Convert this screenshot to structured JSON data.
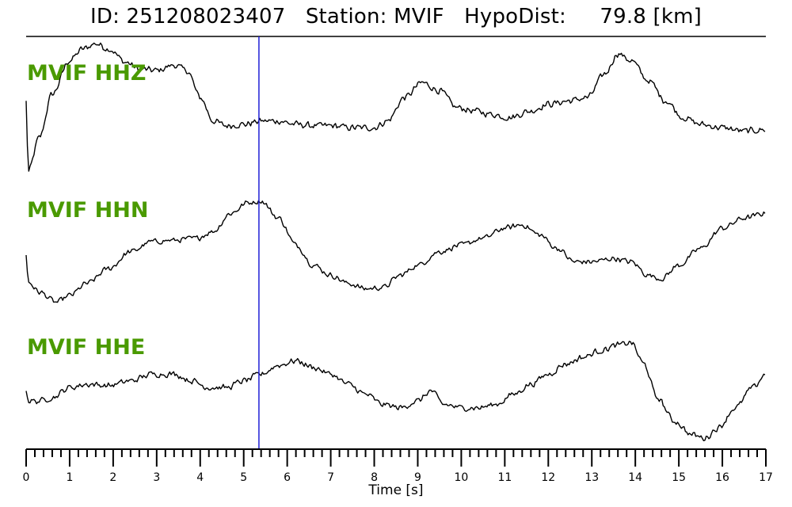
{
  "header": {
    "title": "ID: 251208023407   Station: MVIF   HypoDist:     79.8 [km]"
  },
  "colors": {
    "trace": "#000000",
    "label": "#4a9a00",
    "pick_line": "#1f1fd6",
    "axis": "#000000"
  },
  "chart_data": {
    "type": "line",
    "title": "ID: 251208023407   Station: MVIF   HypoDist:     79.8 [km]",
    "xlabel": "Time [s]",
    "ylabel": "",
    "xlim": [
      0,
      17
    ],
    "x_ticks": [
      "0",
      "1",
      "2",
      "3",
      "4",
      "5",
      "6",
      "7",
      "8",
      "9",
      "10",
      "11",
      "12",
      "13",
      "14",
      "15",
      "16",
      "17"
    ],
    "minor_tick_step": 0.2,
    "pick_time": 5.35,
    "y_axis_shown": false,
    "grid": false,
    "series": [
      {
        "name": "MVIF HHZ",
        "noise": 0.06,
        "points": [
          [
            0.0,
            0.15
          ],
          [
            0.05,
            -0.9
          ],
          [
            0.3,
            -0.4
          ],
          [
            0.6,
            0.25
          ],
          [
            1.0,
            0.75
          ],
          [
            1.3,
            0.92
          ],
          [
            1.6,
            1.0
          ],
          [
            1.9,
            0.92
          ],
          [
            2.3,
            0.72
          ],
          [
            2.6,
            0.62
          ],
          [
            3.0,
            0.6
          ],
          [
            3.4,
            0.68
          ],
          [
            3.7,
            0.6
          ],
          [
            4.0,
            0.2
          ],
          [
            4.3,
            -0.15
          ],
          [
            4.6,
            -0.22
          ],
          [
            5.0,
            -0.2
          ],
          [
            5.4,
            -0.15
          ],
          [
            5.8,
            -0.15
          ],
          [
            6.2,
            -0.2
          ],
          [
            6.6,
            -0.22
          ],
          [
            7.0,
            -0.22
          ],
          [
            7.5,
            -0.25
          ],
          [
            8.0,
            -0.25
          ],
          [
            8.3,
            -0.15
          ],
          [
            8.7,
            0.2
          ],
          [
            9.1,
            0.42
          ],
          [
            9.5,
            0.3
          ],
          [
            9.9,
            0.05
          ],
          [
            10.3,
            0.0
          ],
          [
            10.7,
            -0.05
          ],
          [
            11.1,
            -0.1
          ],
          [
            11.6,
            0.0
          ],
          [
            12.0,
            0.1
          ],
          [
            12.5,
            0.15
          ],
          [
            12.9,
            0.2
          ],
          [
            13.3,
            0.55
          ],
          [
            13.6,
            0.85
          ],
          [
            13.9,
            0.75
          ],
          [
            14.3,
            0.45
          ],
          [
            14.7,
            0.15
          ],
          [
            15.1,
            -0.1
          ],
          [
            15.5,
            -0.2
          ],
          [
            16.0,
            -0.25
          ],
          [
            16.5,
            -0.3
          ],
          [
            17.0,
            -0.28
          ]
        ]
      },
      {
        "name": "MVIF HHN",
        "noise": 0.05,
        "points": [
          [
            0.0,
            -0.2
          ],
          [
            0.05,
            -0.6
          ],
          [
            0.3,
            -0.75
          ],
          [
            0.7,
            -0.9
          ],
          [
            1.0,
            -0.8
          ],
          [
            1.4,
            -0.62
          ],
          [
            1.9,
            -0.4
          ],
          [
            2.4,
            -0.15
          ],
          [
            2.9,
            0.0
          ],
          [
            3.4,
            0.02
          ],
          [
            3.9,
            0.05
          ],
          [
            4.3,
            0.15
          ],
          [
            4.7,
            0.42
          ],
          [
            5.1,
            0.58
          ],
          [
            5.4,
            0.6
          ],
          [
            5.8,
            0.35
          ],
          [
            6.2,
            -0.05
          ],
          [
            6.6,
            -0.35
          ],
          [
            7.0,
            -0.5
          ],
          [
            7.4,
            -0.62
          ],
          [
            7.8,
            -0.7
          ],
          [
            8.2,
            -0.68
          ],
          [
            8.6,
            -0.5
          ],
          [
            9.0,
            -0.35
          ],
          [
            9.5,
            -0.15
          ],
          [
            10.0,
            -0.05
          ],
          [
            10.5,
            0.05
          ],
          [
            11.0,
            0.2
          ],
          [
            11.4,
            0.25
          ],
          [
            11.8,
            0.1
          ],
          [
            12.2,
            -0.1
          ],
          [
            12.6,
            -0.3
          ],
          [
            13.0,
            -0.3
          ],
          [
            13.5,
            -0.25
          ],
          [
            13.9,
            -0.3
          ],
          [
            14.3,
            -0.5
          ],
          [
            14.6,
            -0.55
          ],
          [
            15.0,
            -0.35
          ],
          [
            15.5,
            -0.1
          ],
          [
            16.0,
            0.2
          ],
          [
            16.5,
            0.35
          ],
          [
            17.0,
            0.42
          ]
        ]
      },
      {
        "name": "MVIF HHE",
        "noise": 0.055,
        "points": [
          [
            0.0,
            -0.1
          ],
          [
            0.05,
            -0.25
          ],
          [
            0.3,
            -0.25
          ],
          [
            0.6,
            -0.2
          ],
          [
            1.0,
            -0.05
          ],
          [
            1.4,
            0.0
          ],
          [
            1.9,
            -0.02
          ],
          [
            2.4,
            0.05
          ],
          [
            2.9,
            0.15
          ],
          [
            3.4,
            0.15
          ],
          [
            3.8,
            0.05
          ],
          [
            4.2,
            -0.05
          ],
          [
            4.6,
            -0.05
          ],
          [
            5.0,
            0.05
          ],
          [
            5.4,
            0.15
          ],
          [
            5.8,
            0.28
          ],
          [
            6.2,
            0.35
          ],
          [
            6.6,
            0.25
          ],
          [
            7.0,
            0.15
          ],
          [
            7.4,
            0.0
          ],
          [
            7.8,
            -0.15
          ],
          [
            8.2,
            -0.3
          ],
          [
            8.6,
            -0.35
          ],
          [
            9.0,
            -0.25
          ],
          [
            9.3,
            -0.1
          ],
          [
            9.6,
            -0.3
          ],
          [
            10.0,
            -0.35
          ],
          [
            10.4,
            -0.35
          ],
          [
            10.8,
            -0.3
          ],
          [
            11.2,
            -0.15
          ],
          [
            11.6,
            0.0
          ],
          [
            12.0,
            0.15
          ],
          [
            12.4,
            0.3
          ],
          [
            12.8,
            0.4
          ],
          [
            13.2,
            0.5
          ],
          [
            13.6,
            0.58
          ],
          [
            13.9,
            0.62
          ],
          [
            14.2,
            0.3
          ],
          [
            14.5,
            -0.2
          ],
          [
            14.9,
            -0.55
          ],
          [
            15.3,
            -0.75
          ],
          [
            15.6,
            -0.8
          ],
          [
            15.9,
            -0.65
          ],
          [
            16.3,
            -0.35
          ],
          [
            16.7,
            -0.05
          ],
          [
            17.0,
            0.15
          ]
        ]
      }
    ]
  }
}
